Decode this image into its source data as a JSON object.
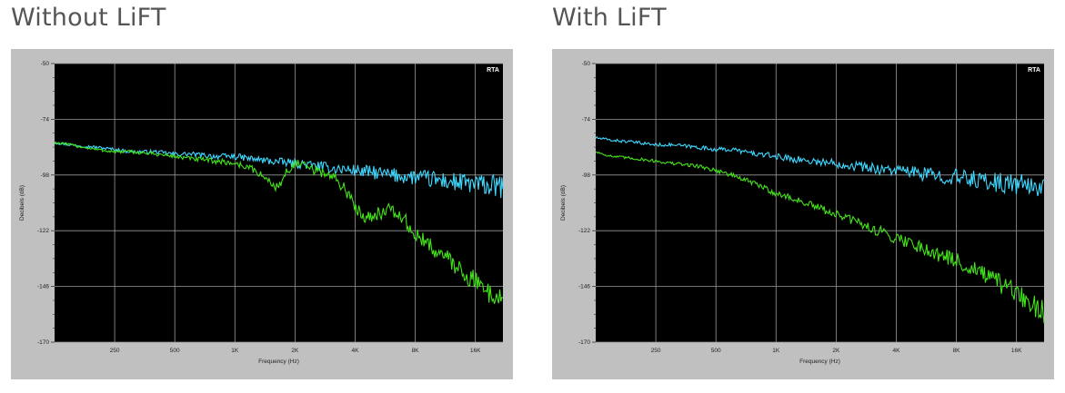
{
  "panels": [
    {
      "title": "Without LiFT"
    },
    {
      "title": "With LiFT"
    }
  ],
  "colors": {
    "plot_background": "#000000",
    "frame": "#c0c0c0",
    "grid": "#9a9a9a",
    "cyan_trace": "#3fd8ff",
    "green_trace": "#44e21a"
  },
  "chart_data": [
    {
      "type": "line",
      "badge": "RTA",
      "xlabel": "Frequency (Hz)",
      "ylabel": "Decibels (dB)",
      "x_scale": "log",
      "x_ticks": [
        250,
        500,
        1000,
        2000,
        4000,
        8000,
        16000
      ],
      "x_tick_labels": [
        "250",
        "500",
        "1K",
        "2K",
        "4K",
        "8K",
        "16K"
      ],
      "xlim": [
        125,
        22000
      ],
      "y_ticks": [
        -50,
        -74,
        -98,
        -122,
        -146,
        -170
      ],
      "y_tick_labels": [
        "-50",
        "-74",
        "-98",
        "-122",
        "-146",
        "-170"
      ],
      "ylim": [
        -170,
        -50
      ],
      "grid": true,
      "series": [
        {
          "x": [
            125,
            150,
            200,
            250,
            300,
            400,
            500,
            600,
            800,
            1000,
            1200,
            1500,
            2000,
            2500,
            3000,
            4000,
            5000,
            6000,
            8000,
            10000,
            12000,
            16000,
            20000,
            22000
          ],
          "y": [
            -84,
            -85,
            -86,
            -87,
            -88,
            -88,
            -89,
            -89,
            -90,
            -90,
            -91,
            -92,
            -93,
            -94,
            -95,
            -96,
            -97,
            -98,
            -99,
            -100,
            -101,
            -102,
            -103,
            -103
          ]
        },
        {
          "x": [
            125,
            150,
            200,
            250,
            300,
            400,
            500,
            600,
            800,
            1000,
            1200,
            1400,
            1600,
            1700,
            1800,
            2000,
            2200,
            2500,
            3000,
            3500,
            4000,
            4500,
            5000,
            6000,
            7000,
            8000,
            10000,
            12000,
            16000,
            20000,
            22000
          ],
          "y": [
            -84,
            -85,
            -87,
            -88,
            -88,
            -89,
            -90,
            -91,
            -92,
            -93,
            -95,
            -99,
            -103,
            -102,
            -97,
            -93,
            -94,
            -96,
            -98,
            -103,
            -112,
            -116,
            -115,
            -113,
            -117,
            -124,
            -130,
            -135,
            -144,
            -150,
            -152
          ]
        }
      ]
    },
    {
      "type": "line",
      "badge": "RTA",
      "xlabel": "Frequency (Hz)",
      "ylabel": "Decibels (dB)",
      "x_scale": "log",
      "x_ticks": [
        250,
        500,
        1000,
        2000,
        4000,
        8000,
        16000
      ],
      "x_tick_labels": [
        "250",
        "500",
        "1K",
        "2K",
        "4K",
        "8K",
        "16K"
      ],
      "xlim": [
        125,
        22000
      ],
      "y_ticks": [
        -50,
        -74,
        -98,
        -122,
        -146,
        -170
      ],
      "y_tick_labels": [
        "-50",
        "-74",
        "-98",
        "-122",
        "-146",
        "-170"
      ],
      "ylim": [
        -170,
        -50
      ],
      "grid": true,
      "series": [
        {
          "x": [
            125,
            150,
            200,
            250,
            300,
            400,
            500,
            600,
            800,
            1000,
            1200,
            1500,
            2000,
            2500,
            3000,
            4000,
            5000,
            6000,
            8000,
            10000,
            12000,
            16000,
            20000,
            22000
          ],
          "y": [
            -82,
            -83,
            -84,
            -85,
            -85,
            -86,
            -87,
            -87,
            -89,
            -90,
            -91,
            -92,
            -93,
            -94,
            -95,
            -96,
            -97,
            -98,
            -99,
            -100,
            -101,
            -102,
            -103,
            -103
          ]
        },
        {
          "x": [
            125,
            150,
            200,
            250,
            300,
            400,
            500,
            600,
            800,
            1000,
            1200,
            1500,
            2000,
            2500,
            3000,
            4000,
            5000,
            6000,
            8000,
            10000,
            12000,
            16000,
            20000,
            22000
          ],
          "y": [
            -88,
            -90,
            -91,
            -92,
            -93,
            -94,
            -96,
            -98,
            -102,
            -106,
            -108,
            -111,
            -115,
            -118,
            -121,
            -125,
            -128,
            -131,
            -135,
            -139,
            -143,
            -149,
            -155,
            -157
          ]
        }
      ]
    }
  ]
}
